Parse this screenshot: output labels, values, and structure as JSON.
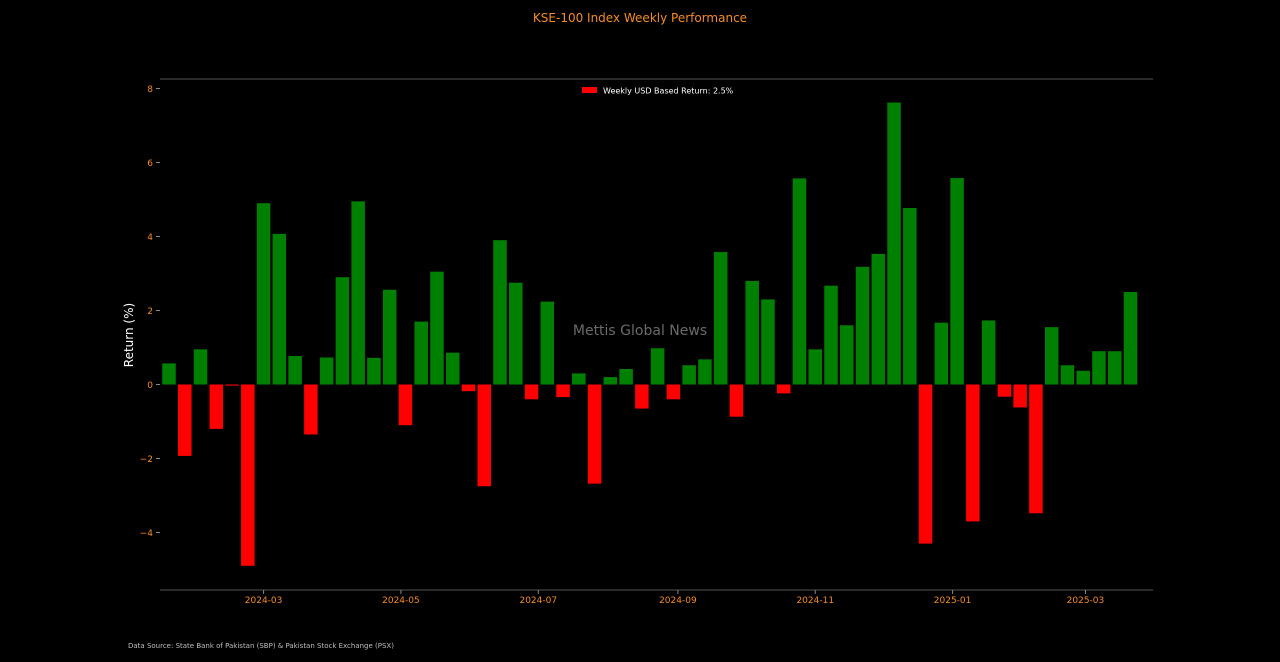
{
  "chart_data": {
    "type": "bar",
    "title": "KSE-100 Index Weekly Performance",
    "ylabel": "Return (%)",
    "xlabel": "",
    "ylim": [
      -5.5,
      8.2
    ],
    "yticks": [
      -4,
      -2,
      0,
      2,
      4,
      6,
      8
    ],
    "x_axis_type": "date",
    "x_range": [
      "2024-01-15",
      "2025-03-31"
    ],
    "x_tick_labels": [
      {
        "date": "2024-03-01",
        "label": "2024-03"
      },
      {
        "date": "2024-05-01",
        "label": "2024-05"
      },
      {
        "date": "2024-07-01",
        "label": "2024-07"
      },
      {
        "date": "2024-09-01",
        "label": "2024-09"
      },
      {
        "date": "2024-11-01",
        "label": "2024-11"
      },
      {
        "date": "2025-01-01",
        "label": "2025-01"
      },
      {
        "date": "2025-03-01",
        "label": "2025-03"
      }
    ],
    "positive_color": "#008000",
    "negative_color": "#ff0000",
    "legend": {
      "label": "Weekly USD Based Return: 2.5%",
      "color": "#ff0000",
      "placement": "top-center"
    },
    "grid": false,
    "series": [
      {
        "dates": [
          "2024-01-19",
          "2024-01-26",
          "2024-02-02",
          "2024-02-09",
          "2024-02-16",
          "2024-02-23",
          "2024-03-01",
          "2024-03-08",
          "2024-03-15",
          "2024-03-22",
          "2024-03-29",
          "2024-04-05",
          "2024-04-12",
          "2024-04-19",
          "2024-04-26",
          "2024-05-03",
          "2024-05-10",
          "2024-05-17",
          "2024-05-24",
          "2024-05-31",
          "2024-06-07",
          "2024-06-14",
          "2024-06-21",
          "2024-06-28",
          "2024-07-05",
          "2024-07-12",
          "2024-07-19",
          "2024-07-26",
          "2024-08-02",
          "2024-08-09",
          "2024-08-16",
          "2024-08-23",
          "2024-08-30",
          "2024-09-06",
          "2024-09-13",
          "2024-09-20",
          "2024-09-27",
          "2024-10-04",
          "2024-10-11",
          "2024-10-18",
          "2024-10-25",
          "2024-11-01",
          "2024-11-08",
          "2024-11-15",
          "2024-11-22",
          "2024-11-29",
          "2024-12-06",
          "2024-12-13",
          "2024-12-20",
          "2024-12-27",
          "2025-01-03",
          "2025-01-10",
          "2025-01-17",
          "2025-01-24",
          "2025-01-31",
          "2025-02-07",
          "2025-02-14",
          "2025-02-21",
          "2025-02-28",
          "2025-03-07",
          "2025-03-14",
          "2025-03-21"
        ],
        "values": [
          0.57,
          -1.93,
          0.95,
          -1.2,
          -0.03,
          -4.9,
          4.9,
          4.07,
          0.77,
          -1.35,
          0.73,
          2.9,
          4.95,
          0.72,
          2.56,
          -1.1,
          1.7,
          3.05,
          0.86,
          -0.18,
          -2.75,
          3.9,
          2.75,
          -0.4,
          2.24,
          -0.34,
          0.3,
          -2.68,
          0.2,
          0.42,
          -0.65,
          0.98,
          -0.4,
          0.52,
          0.68,
          3.58,
          -0.87,
          2.8,
          2.3,
          -0.24,
          5.57,
          0.95,
          2.67,
          1.6,
          3.18,
          3.53,
          7.62,
          4.77,
          -4.3,
          1.67,
          5.58,
          -3.7,
          1.73,
          -0.33,
          -0.62,
          -3.48,
          1.55,
          0.52,
          0.37,
          0.9,
          0.9,
          2.5
        ]
      }
    ]
  },
  "watermark": "Mettis Global News",
  "source_note": "Data Source: State Bank of Pakistan (SBP) & Pakistan Stock Exchange (PSX)"
}
